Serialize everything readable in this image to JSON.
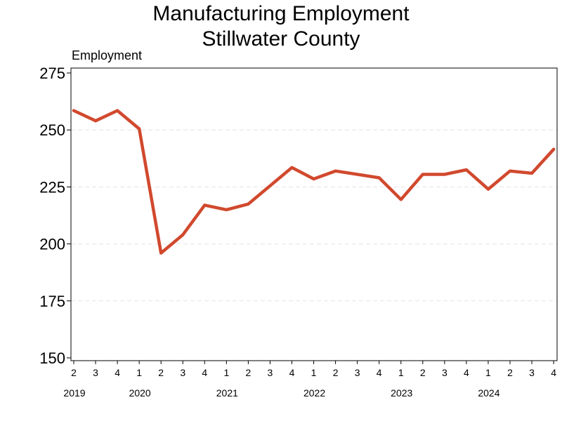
{
  "chart_data": {
    "type": "line",
    "title": [
      "Manufacturing Employment",
      "Stillwater County"
    ],
    "ylabel": "Employment",
    "xlabel": "",
    "ylim": [
      150,
      275
    ],
    "yticks": [
      150,
      175,
      200,
      225,
      250,
      275
    ],
    "grid": "horizontal dashed",
    "line_color": "#d1492e",
    "x": [
      "2019 Q2",
      "2019 Q3",
      "2019 Q4",
      "2020 Q1",
      "2020 Q2",
      "2020 Q3",
      "2020 Q4",
      "2021 Q1",
      "2021 Q2",
      "2021 Q3",
      "2021 Q4",
      "2022 Q1",
      "2022 Q2",
      "2022 Q3",
      "2022 Q4",
      "2023 Q1",
      "2023 Q2",
      "2023 Q3",
      "2023 Q4",
      "2024 Q1",
      "2024 Q2",
      "2024 Q3",
      "2024 Q4"
    ],
    "quarter_labels": [
      "2",
      "3",
      "4",
      "1",
      "2",
      "3",
      "4",
      "1",
      "2",
      "3",
      "4",
      "1",
      "2",
      "3",
      "4",
      "1",
      "2",
      "3",
      "4",
      "1",
      "2",
      "3",
      "4"
    ],
    "year_labels": [
      {
        "label": "2019",
        "index": 0
      },
      {
        "label": "2020",
        "index": 3
      },
      {
        "label": "2021",
        "index": 7
      },
      {
        "label": "2022",
        "index": 11
      },
      {
        "label": "2023",
        "index": 15
      },
      {
        "label": "2024",
        "index": 19
      }
    ],
    "series": [
      {
        "values": [
          258.5,
          254,
          258.5,
          250.5,
          196,
          204,
          217,
          215,
          217.5,
          225.5,
          233.5,
          228.5,
          232,
          230.5,
          229,
          219.5,
          230.5,
          230.5,
          232.5,
          224,
          232,
          231,
          241.5
        ]
      }
    ]
  }
}
